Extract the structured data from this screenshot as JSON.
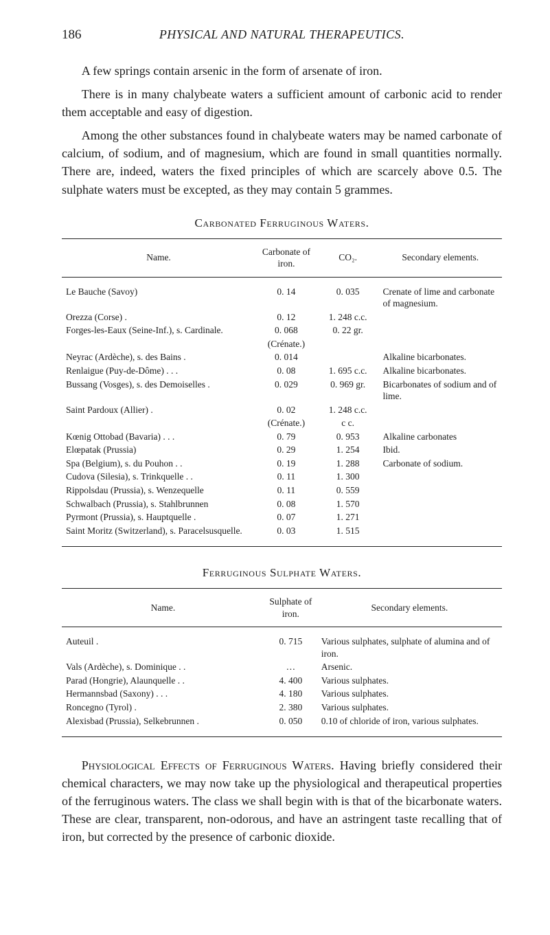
{
  "page_number": "186",
  "running_title": "PHYSICAL AND NATURAL THERAPEUTICS.",
  "paragraphs": {
    "p1": "A few springs contain arsenic in the form of arsenate of iron.",
    "p2": "There is in many chalybeate waters a sufficient amount of carbonic acid to render them acceptable and easy of digestion.",
    "p3": "Among the other substances found in chalybeate waters may be named carbonate of calcium, of sodium, and of magnesium, which are found in small quantities normally. There are, indeed, waters the fixed principles of which are scarcely above 0.5. The sulphate waters must be excepted, as they may contain 5 grammes."
  },
  "table1": {
    "title": "Carbonated Ferruginous Waters.",
    "headers": {
      "name": "Name.",
      "carbonate": "Carbonate of iron.",
      "co2": "CO₂.",
      "secondary": "Secondary elements."
    },
    "rows": [
      {
        "name": "Le Bauche (Savoy)",
        "carbonate": "0. 14",
        "co2": "0. 035",
        "secondary": "Crenate of lime and carbonate of magnesium."
      },
      {
        "name": "Orezza (Corse) .",
        "carbonate": "0. 12",
        "co2": "1. 248 c.c.",
        "secondary": ""
      },
      {
        "name": "Forges-les-Eaux (Seine-Inf.), s. Cardinale.",
        "carbonate": "0. 068",
        "co2": "0. 22 gr.",
        "secondary": ""
      },
      {
        "name": "",
        "carbonate": "(Crénate.)",
        "co2": "",
        "secondary": ""
      },
      {
        "name": "Neyrac (Ardèche), s. des Bains  .",
        "carbonate": "0. 014",
        "co2": "",
        "secondary": "Alkaline bicarbonates."
      },
      {
        "name": "Renlaigue (Puy-de-Dôme)  .   .   .",
        "carbonate": "0. 08",
        "co2": "1. 695 c.c.",
        "secondary": "Alkaline bicarbonates."
      },
      {
        "name": "Bussang (Vosges), s. des Demoiselles .",
        "carbonate": "0. 029",
        "co2": "0. 969 gr.",
        "secondary": "Bicarbonates of sodium and of lime."
      },
      {
        "name": "Saint Pardoux (Allier) .",
        "carbonate": "0. 02",
        "co2": "1. 248 c.c.",
        "secondary": ""
      },
      {
        "name": "",
        "carbonate": "(Crénate.)",
        "co2": "c c.",
        "secondary": ""
      },
      {
        "name": "Kœnig Ottobad (Bavaria)   .   .   .",
        "carbonate": "0. 79",
        "co2": "0. 953",
        "secondary": "Alkaline carbonates"
      },
      {
        "name": "Elœpatak (Prussia)",
        "carbonate": "0. 29",
        "co2": "1. 254",
        "secondary": "Ibid."
      },
      {
        "name": "Spa (Belgium), s. du Pouhon   .   .",
        "carbonate": "0. 19",
        "co2": "1. 288",
        "secondary": "Carbonate of sodium."
      },
      {
        "name": "Cudova (Silesia), s. Trinkquelle .   .",
        "carbonate": "0. 11",
        "co2": "1. 300",
        "secondary": ""
      },
      {
        "name": "Rippolsdau (Prussia), s. Wenzequelle",
        "carbonate": "0. 11",
        "co2": "0. 559",
        "secondary": ""
      },
      {
        "name": "Schwalbach (Prussia), s. Stahlbrunnen",
        "carbonate": "0. 08",
        "co2": "1. 570",
        "secondary": ""
      },
      {
        "name": "Pyrmont (Prussia), s. Hauptquelle   .",
        "carbonate": "0. 07",
        "co2": "1. 271",
        "secondary": ""
      },
      {
        "name": "Saint Moritz (Switzerland), s. Paracelsusquelle.",
        "carbonate": "0. 03",
        "co2": "1. 515",
        "secondary": ""
      }
    ]
  },
  "table2": {
    "title": "Ferruginous Sulphate Waters.",
    "headers": {
      "name": "Name.",
      "sulphate": "Sulphate of iron.",
      "secondary": "Secondary elements."
    },
    "rows": [
      {
        "name": "Auteuil .",
        "sulphate": "0. 715",
        "secondary": "Various sulphates, sulphate of alumina and of iron."
      },
      {
        "name": "Vals (Ardèche), s. Dominique   .   .",
        "sulphate": "…",
        "secondary": "Arsenic."
      },
      {
        "name": "Parad (Hongrie), Alaunquelle   .   .",
        "sulphate": "4. 400",
        "secondary": "Various sulphates."
      },
      {
        "name": "Hermannsbad (Saxony)   .   .   .",
        "sulphate": "4. 180",
        "secondary": "Various sulphates."
      },
      {
        "name": "Roncegno (Tyrol) .",
        "sulphate": "2. 380",
        "secondary": "Various sulphates."
      },
      {
        "name": "Alexisbad (Prussia), Selkebrunnen   .",
        "sulphate": "0. 050",
        "secondary": "0.10 of chloride of iron, various sulphates."
      }
    ]
  },
  "closing": {
    "lead_sc": "Physiological Effects of Ferruginous Waters.",
    "rest": "   Having briefly considered their chemical characters, we may now take up the physiological and therapeutical properties of the ferruginous waters.   The class we shall begin with is that of the bicarbonate waters.   These are clear, transparent, non-odorous, and have an astringent taste recalling that of iron, but corrected by the presence of carbonic dioxide."
  },
  "style": {
    "background_color": "#ffffff",
    "text_color": "#1a1a1a",
    "rule_color": "#222222",
    "body_fontsize_pt": 13.5,
    "heading_fontsize_pt": 14,
    "table_fontsize_pt": 10
  }
}
